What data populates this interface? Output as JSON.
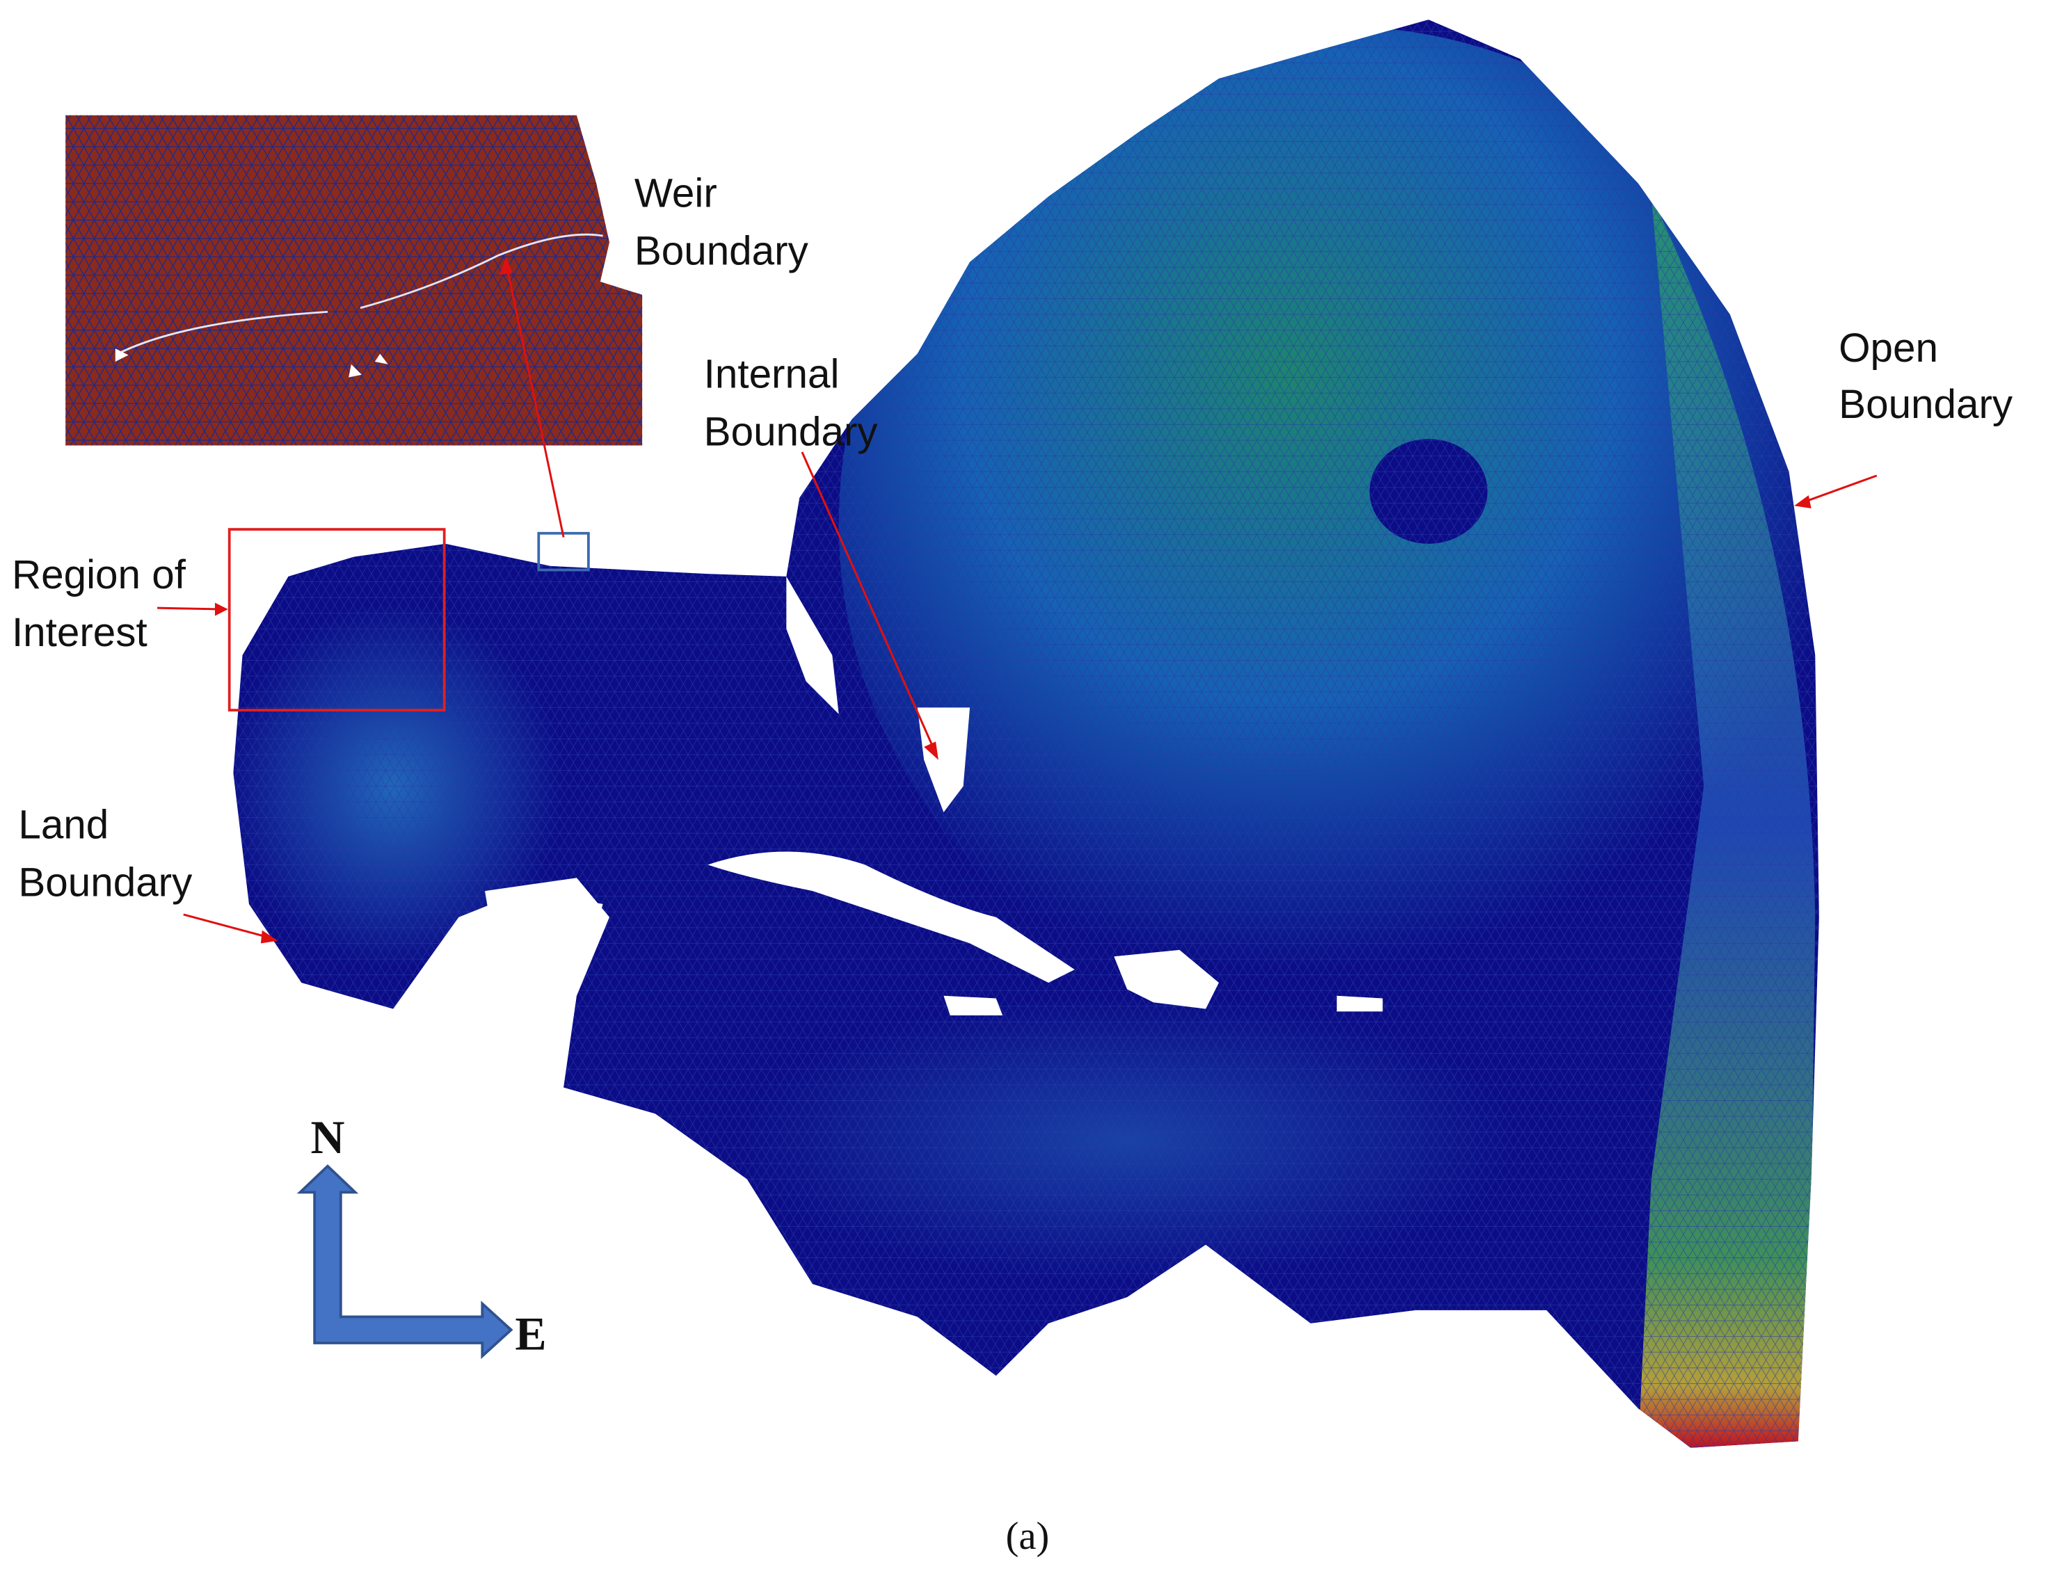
{
  "labels": {
    "weir": [
      "Weir",
      "Boundary"
    ],
    "internal": [
      "Internal",
      "Boundary"
    ],
    "open": [
      "Open",
      "Boundary"
    ],
    "region": [
      "Region of",
      "Interest"
    ],
    "land": [
      "Land",
      "Boundary"
    ]
  },
  "compass": {
    "north": "N",
    "east": "E"
  },
  "caption": "(a)"
}
